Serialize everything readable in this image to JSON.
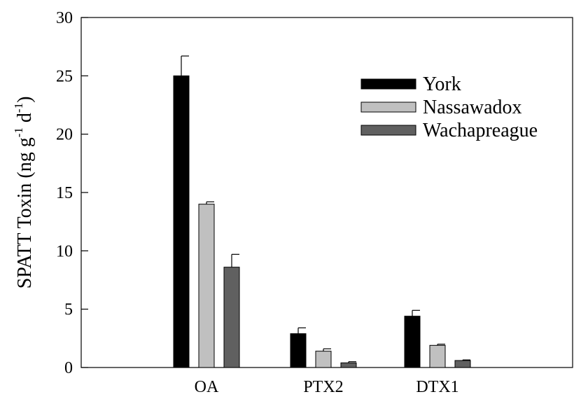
{
  "chart_data": {
    "type": "bar",
    "ylabel_parts": {
      "main": "SPATT Toxin (ng g",
      "exp1": "-1",
      "mid": " d",
      "exp2": "-1",
      "close": ")"
    },
    "xlabel": "",
    "ylim": [
      0,
      30
    ],
    "yticks": [
      0,
      5,
      10,
      15,
      20,
      25,
      30
    ],
    "categories": [
      "OA",
      "PTX2",
      "DTX1"
    ],
    "series": [
      {
        "name": "York",
        "color": "#000000",
        "values": [
          25.0,
          2.9,
          4.4
        ],
        "errors": [
          1.7,
          0.5,
          0.5
        ]
      },
      {
        "name": "Nassawadox",
        "color": "#c0c0c0",
        "values": [
          14.0,
          1.4,
          1.9
        ],
        "errors": [
          0.2,
          0.2,
          0.1
        ]
      },
      {
        "name": "Wachapreague",
        "color": "#606060",
        "values": [
          8.6,
          0.4,
          0.6
        ],
        "errors": [
          1.1,
          0.1,
          0.05
        ]
      }
    ],
    "legend_position": "top-right",
    "grid": false
  }
}
